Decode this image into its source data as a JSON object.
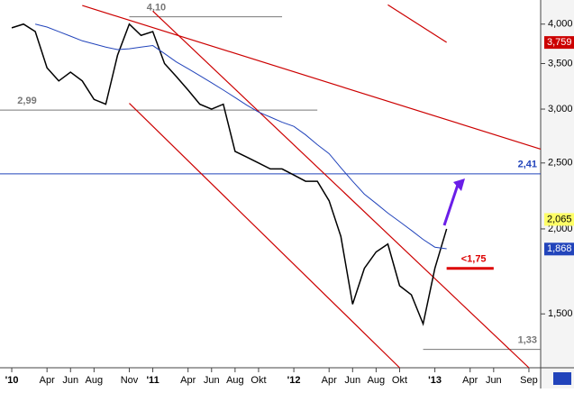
{
  "chart_data": {
    "type": "line",
    "log_y": true,
    "x": [
      "2010-01",
      "2010-02",
      "2010-03",
      "2010-04",
      "2010-05",
      "2010-06",
      "2010-07",
      "2010-08",
      "2010-09",
      "2010-10",
      "2010-11",
      "2010-12",
      "2011-01",
      "2011-02",
      "2011-03",
      "2011-04",
      "2011-05",
      "2011-06",
      "2011-07",
      "2011-08",
      "2011-09",
      "2011-10",
      "2011-11",
      "2011-12",
      "2012-01",
      "2012-02",
      "2012-03",
      "2012-04",
      "2012-05",
      "2012-06",
      "2012-07",
      "2012-08",
      "2012-09",
      "2012-10",
      "2012-11",
      "2012-12",
      "2013-01",
      "2013-02"
    ],
    "series": [
      {
        "color": "#000000",
        "values": [
          3.95,
          4.0,
          3.9,
          3.45,
          3.3,
          3.4,
          3.3,
          3.1,
          3.05,
          3.6,
          4.0,
          3.85,
          3.9,
          3.5,
          3.35,
          3.2,
          3.05,
          3.0,
          3.05,
          2.6,
          2.55,
          2.5,
          2.45,
          2.45,
          2.4,
          2.35,
          2.35,
          2.2,
          1.95,
          1.55,
          1.75,
          1.85,
          1.9,
          1.65,
          1.6,
          1.45,
          1.75,
          2.0
        ]
      },
      {
        "color": "#2244bb",
        "values": [
          null,
          null,
          4.0,
          3.96,
          3.9,
          3.84,
          3.78,
          3.74,
          3.7,
          3.67,
          3.68,
          3.7,
          3.72,
          3.62,
          3.52,
          3.44,
          3.36,
          3.28,
          3.2,
          3.12,
          3.04,
          2.97,
          2.92,
          2.87,
          2.83,
          2.75,
          2.66,
          2.58,
          2.46,
          2.35,
          2.25,
          2.18,
          2.11,
          2.05,
          1.99,
          1.93,
          1.88,
          1.87
        ]
      }
    ],
    "xlim": [
      "2009-12",
      "2013-10"
    ],
    "xticks": [
      {
        "value": "2010-01",
        "label": "'10"
      },
      {
        "value": "2010-04",
        "label": "Apr"
      },
      {
        "value": "2010-06",
        "label": "Jun"
      },
      {
        "value": "2010-08",
        "label": "Aug"
      },
      {
        "value": "2010-11",
        "label": "Nov"
      },
      {
        "value": "2011-01",
        "label": "'11"
      },
      {
        "value": "2011-04",
        "label": "Apr"
      },
      {
        "value": "2011-06",
        "label": "Jun"
      },
      {
        "value": "2011-08",
        "label": "Aug"
      },
      {
        "value": "2011-10",
        "label": "Okt"
      },
      {
        "value": "2012-01",
        "label": "'12"
      },
      {
        "value": "2012-04",
        "label": "Apr"
      },
      {
        "value": "2012-06",
        "label": "Jun"
      },
      {
        "value": "2012-08",
        "label": "Aug"
      },
      {
        "value": "2012-10",
        "label": "Okt"
      },
      {
        "value": "2013-01",
        "label": "'13"
      },
      {
        "value": "2013-04",
        "label": "Apr"
      },
      {
        "value": "2013-06",
        "label": "Jun"
      },
      {
        "value": "2013-09",
        "label": "Sep"
      }
    ],
    "ylim": [
      1.25,
      4.34
    ],
    "yticks": [
      {
        "value": 1.5,
        "label": "1,500"
      },
      {
        "value": 2.0,
        "label": "2,000"
      },
      {
        "value": 2.5,
        "label": "2,500"
      },
      {
        "value": 3.0,
        "label": "3,000"
      },
      {
        "value": 3.5,
        "label": "3,500"
      },
      {
        "value": 4.0,
        "label": "4,000"
      }
    ],
    "price_markers": [
      {
        "value": 3.759,
        "label": "3,759",
        "color": "#cc0000"
      },
      {
        "value": 2.065,
        "label": "2,065",
        "color": "#ffff66"
      },
      {
        "value": 1.868,
        "label": "1,868",
        "color": "#2244bb"
      }
    ],
    "trend_lines": [
      {
        "x": [
          "2010-07",
          "2013-10"
        ],
        "y": [
          4.26,
          2.62
        ],
        "color": "#cc0000"
      },
      {
        "x": [
          "2011-01",
          "2013-09"
        ],
        "y": [
          4.18,
          1.25
        ],
        "color": "#cc0000"
      },
      {
        "x": [
          "2010-11",
          "2012-10"
        ],
        "y": [
          3.06,
          1.25
        ],
        "color": "#cc0000"
      },
      {
        "x": [
          "2012-09",
          "2013-02"
        ],
        "y": [
          4.27,
          3.76
        ],
        "color": "#cc0000"
      }
    ],
    "levels": [
      {
        "x": [
          "2010-11",
          "2011-12"
        ],
        "value": 4.1,
        "label": "4,10",
        "color": "#777777"
      },
      {
        "x": [
          "2009-12",
          "2012-03"
        ],
        "value": 2.99,
        "label": "2,99",
        "color": "#777777"
      },
      {
        "x": [
          "2009-12",
          "2013-10"
        ],
        "value": 2.41,
        "label": "2,41",
        "color": "#2244bb"
      },
      {
        "x": [
          "2012-12",
          "2013-10"
        ],
        "value": 1.33,
        "label": "1,33",
        "color": "#777777"
      },
      {
        "x": [
          "2013-02",
          "2013-06"
        ],
        "value": 1.75,
        "label": "<1,75",
        "color": "#dd0000"
      }
    ]
  }
}
